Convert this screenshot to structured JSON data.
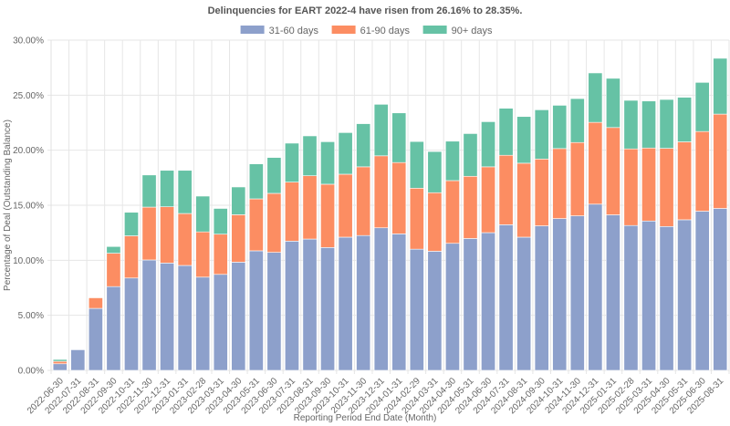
{
  "chart_data": {
    "type": "bar",
    "stacked": true,
    "title": "Delinquencies for EART 2022-4 have risen from 26.16% to 28.35%.",
    "xlabel": "Reporting Period End Date (Month)",
    "ylabel": "Percentage of Deal (Outstanding Balance)",
    "ylim": [
      0,
      30
    ],
    "yticks": [
      "0.00%",
      "5.00%",
      "10.00%",
      "15.00%",
      "20.00%",
      "25.00%",
      "30.00%"
    ],
    "ytick_values": [
      0,
      5,
      10,
      15,
      20,
      25,
      30
    ],
    "grid": true,
    "legend_position": "top-center",
    "categories": [
      "2022-06-30",
      "2022-07-31",
      "2022-08-31",
      "2022-09-30",
      "2022-10-31",
      "2022-11-30",
      "2022-12-31",
      "2023-01-31",
      "2023-02-28",
      "2023-03-31",
      "2023-04-30",
      "2023-05-31",
      "2023-06-30",
      "2023-07-31",
      "2023-08-31",
      "2023-09-30",
      "2023-10-31",
      "2023-11-30",
      "2023-12-31",
      "2024-01-31",
      "2024-02-29",
      "2024-03-31",
      "2024-04-30",
      "2024-05-31",
      "2024-06-30",
      "2024-07-31",
      "2024-08-31",
      "2024-09-30",
      "2024-10-31",
      "2024-11-30",
      "2024-12-31",
      "2025-01-31",
      "2025-02-28",
      "2025-03-31",
      "2025-04-30",
      "2025-05-31",
      "2025-06-30",
      "2025-08-31"
    ],
    "series": [
      {
        "name": "31-60 days",
        "color": "#8da0cb",
        "values": [
          0.6,
          1.87,
          5.63,
          7.61,
          8.39,
          10.03,
          9.75,
          9.53,
          8.47,
          8.72,
          9.83,
          10.86,
          10.72,
          11.74,
          11.93,
          11.16,
          12.1,
          12.25,
          12.95,
          12.4,
          11.01,
          10.82,
          11.54,
          11.98,
          12.51,
          13.23,
          12.1,
          13.13,
          13.79,
          14.04,
          15.1,
          14.13,
          13.16,
          13.57,
          13.07,
          13.68,
          14.46,
          14.71
        ]
      },
      {
        "name": "61-90 days",
        "color": "#fc8d62",
        "values": [
          0.22,
          0.0,
          0.96,
          3.03,
          3.83,
          4.8,
          5.11,
          4.72,
          4.11,
          3.65,
          4.31,
          4.72,
          5.36,
          5.36,
          5.75,
          5.75,
          5.72,
          6.24,
          6.54,
          6.48,
          5.54,
          5.32,
          5.7,
          5.65,
          5.98,
          6.31,
          6.72,
          6.07,
          6.36,
          6.66,
          7.43,
          7.93,
          6.96,
          6.63,
          7.1,
          7.08,
          7.24,
          8.57
        ]
      },
      {
        "name": "90+ days",
        "color": "#66c2a5",
        "values": [
          0.17,
          0.0,
          0.0,
          0.61,
          2.14,
          2.92,
          3.31,
          3.92,
          3.25,
          2.34,
          2.52,
          3.18,
          3.26,
          3.54,
          3.62,
          3.86,
          3.78,
          3.92,
          4.68,
          4.51,
          4.24,
          3.74,
          3.58,
          3.88,
          4.1,
          4.27,
          4.24,
          4.47,
          3.93,
          3.99,
          4.49,
          4.47,
          4.41,
          4.27,
          4.44,
          4.05,
          4.46,
          5.07
        ]
      }
    ]
  }
}
